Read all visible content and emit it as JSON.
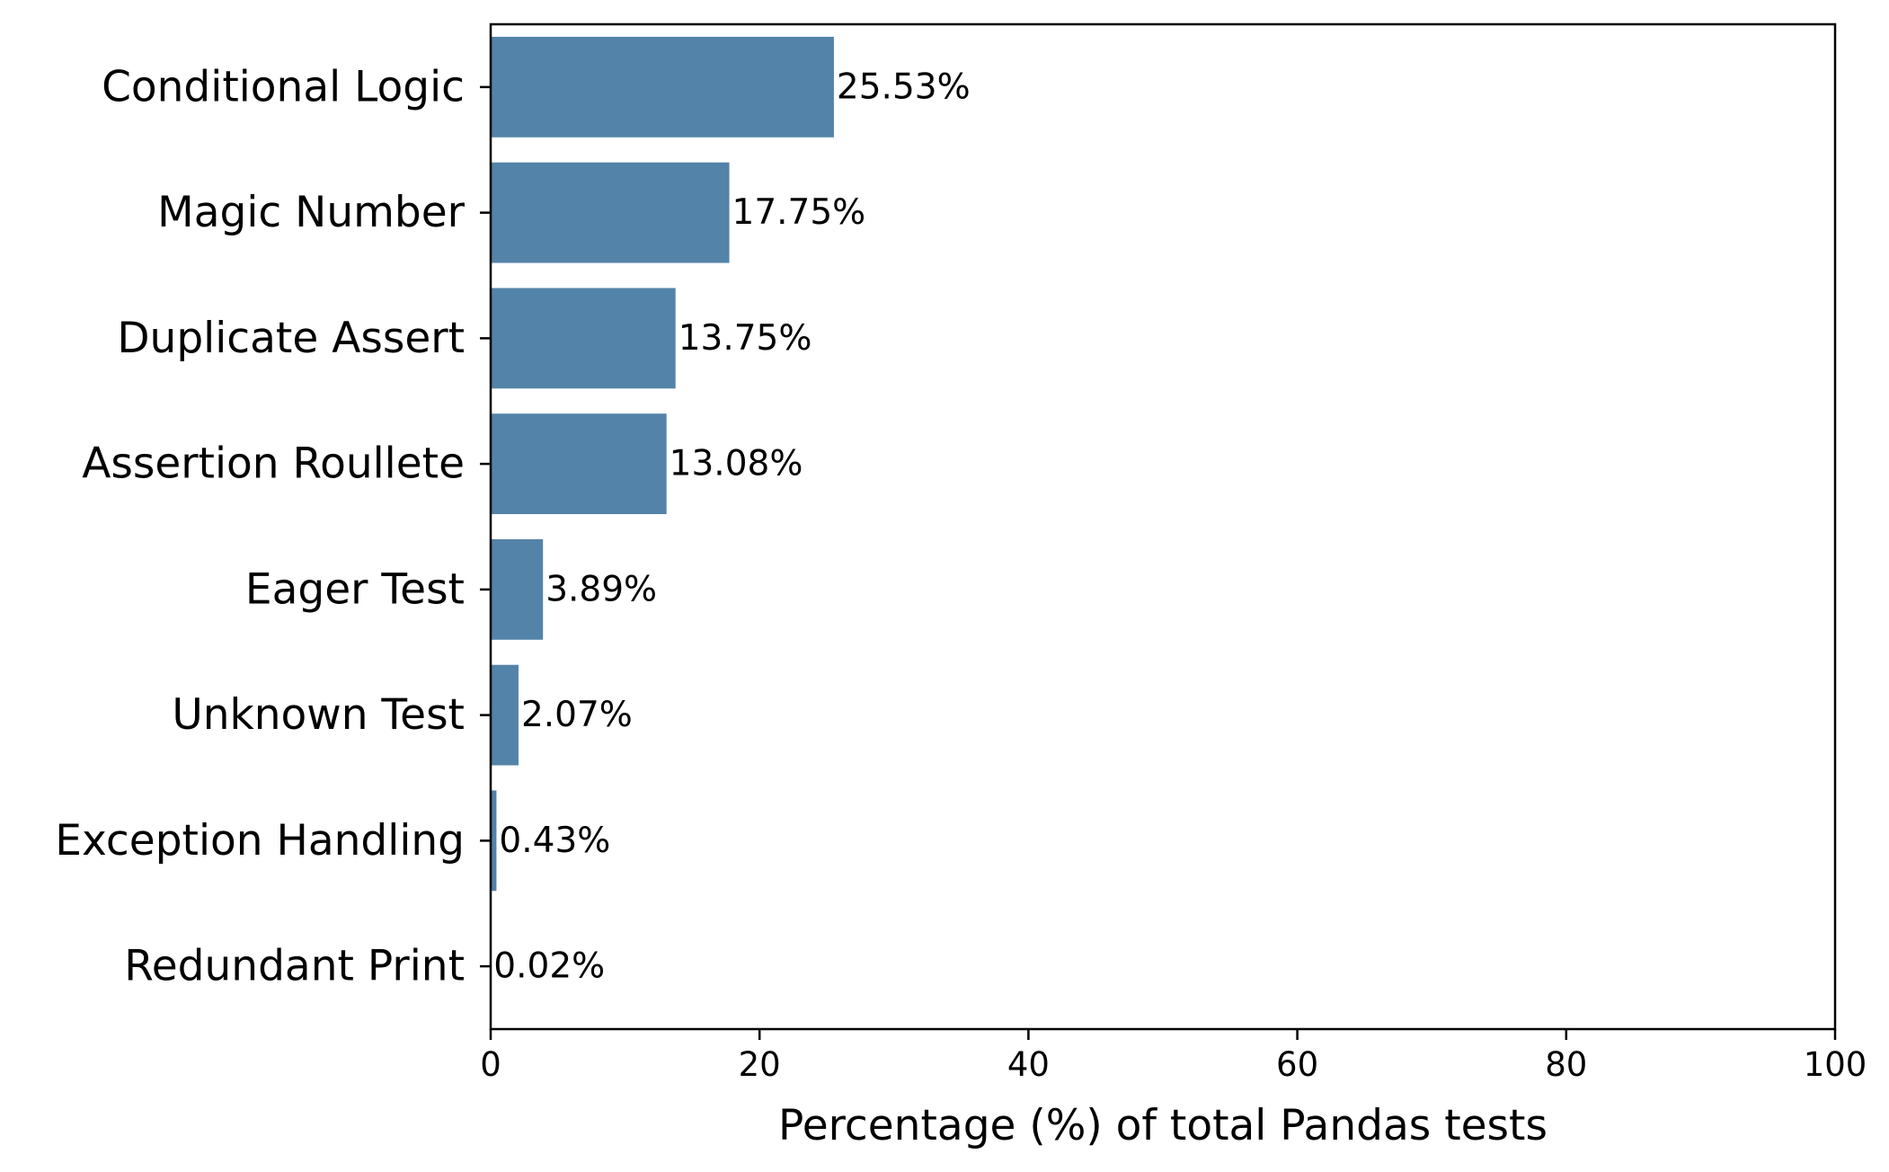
{
  "chart_data": {
    "type": "bar",
    "orientation": "horizontal",
    "categories": [
      "Conditional Logic",
      "Magic Number",
      "Duplicate Assert",
      "Assertion Roullete",
      "Eager Test",
      "Unknown Test",
      "Exception Handling",
      "Redundant Print"
    ],
    "values": [
      25.53,
      17.75,
      13.75,
      13.08,
      3.89,
      2.07,
      0.43,
      0.02
    ],
    "value_labels": [
      "25.53%",
      "17.75%",
      "13.75%",
      "13.08%",
      "3.89%",
      "2.07%",
      "0.43%",
      "0.02%"
    ],
    "title": "",
    "xlabel": "Percentage (%) of total Pandas tests",
    "ylabel": "",
    "xlim": [
      0,
      100
    ],
    "xticks": [
      0,
      20,
      40,
      60,
      80,
      100
    ],
    "xtick_labels": [
      "0",
      "20",
      "40",
      "60",
      "80",
      "100"
    ],
    "grid": false,
    "legend": "none",
    "bar_color": "#5383a8",
    "axis_color": "#000000"
  }
}
